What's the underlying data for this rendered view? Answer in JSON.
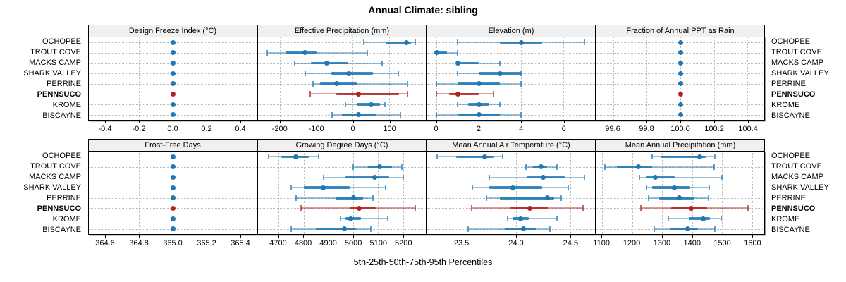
{
  "title": "Annual Climate: sibling",
  "caption": "5th-25th-50th-75th-95th Percentiles",
  "stations": [
    "OCHOPEE",
    "TROUT COVE",
    "MACKS CAMP",
    "SHARK VALLEY",
    "PERRINE",
    "PENNSUCO",
    "KROME",
    "BISCAYNE"
  ],
  "highlight_station": "PENNSUCO",
  "colors": {
    "series_normal": "#1f77b4",
    "series_highlight": "#b22222",
    "strip_background": "#f0f0f0",
    "grid": "#bdbdbd",
    "panel_border": "#000000"
  },
  "chart_data": {
    "type": "dotplot-percentiles",
    "layout": "2 rows x 4 columns trellis",
    "percentile_labels": [
      "5th",
      "25th",
      "50th",
      "75th",
      "95th"
    ],
    "legend_position": "none",
    "grid": true,
    "panels": [
      {
        "title": "Design Freeze Index (°C)",
        "xlim": [
          -0.5,
          0.5
        ],
        "ticks": [
          -0.4,
          -0.2,
          0,
          0.2,
          0.4
        ],
        "tick_labels": [
          "-0.4",
          "-0.2",
          "0.0",
          "0.2",
          "0.4"
        ],
        "values": [
          [
            0,
            0,
            0,
            0,
            0
          ],
          [
            0,
            0,
            0,
            0,
            0
          ],
          [
            0,
            0,
            0,
            0,
            0
          ],
          [
            0,
            0,
            0,
            0,
            0
          ],
          [
            0,
            0,
            0,
            0,
            0
          ],
          [
            0,
            0,
            0,
            0,
            0
          ],
          [
            0,
            0,
            0,
            0,
            0
          ],
          [
            0,
            0,
            0,
            0,
            0
          ]
        ]
      },
      {
        "title": "Effective Precipitation (mm)",
        "xlim": [
          -261,
          201
        ],
        "ticks": [
          -200,
          -100,
          0,
          100
        ],
        "tick_labels": [
          "-200",
          "-100",
          "0",
          "100"
        ],
        "values": [
          [
            30,
            90,
            148,
            160,
            172
          ],
          [
            -235,
            -185,
            -132,
            -100,
            40
          ],
          [
            -160,
            -115,
            -71,
            -13,
            80
          ],
          [
            -130,
            -60,
            -11,
            55,
            125
          ],
          [
            -110,
            -90,
            -45,
            10,
            150
          ],
          [
            -118,
            -45,
            15,
            127,
            150
          ],
          [
            -20,
            10,
            50,
            75,
            88
          ],
          [
            -58,
            -30,
            15,
            65,
            132
          ]
        ]
      },
      {
        "title": "Elevation (m)",
        "xlim": [
          -0.45,
          7.5
        ],
        "ticks": [
          0,
          2,
          4,
          6
        ],
        "tick_labels": [
          "0",
          "2",
          "4",
          "6"
        ],
        "values": [
          [
            1,
            3,
            4,
            5,
            7
          ],
          [
            0,
            0,
            0,
            0.5,
            1
          ],
          [
            1,
            1,
            1,
            2,
            3
          ],
          [
            1,
            2,
            3,
            4,
            4
          ],
          [
            0,
            1,
            2,
            3,
            4
          ],
          [
            0,
            0.6,
            1,
            2,
            2.7
          ],
          [
            1,
            1.5,
            2,
            2.5,
            3
          ],
          [
            0,
            1,
            2,
            3,
            4
          ]
        ]
      },
      {
        "title": "Fraction of Annual PPT as Rain",
        "xlim": [
          99.5,
          100.5
        ],
        "ticks": [
          99.6,
          99.8,
          100,
          100.2,
          100.4
        ],
        "tick_labels": [
          "99.6",
          "99.8",
          "100.0",
          "100.2",
          "100.4"
        ],
        "values": [
          [
            100,
            100,
            100,
            100,
            100
          ],
          [
            100,
            100,
            100,
            100,
            100
          ],
          [
            100,
            100,
            100,
            100,
            100
          ],
          [
            100,
            100,
            100,
            100,
            100
          ],
          [
            100,
            100,
            100,
            100,
            100
          ],
          [
            100,
            100,
            100,
            100,
            100
          ],
          [
            100,
            100,
            100,
            100,
            100
          ],
          [
            100,
            100,
            100,
            100,
            100
          ]
        ]
      },
      {
        "title": "Frost-Free Days",
        "xlim": [
          364.5,
          365.5
        ],
        "ticks": [
          364.6,
          364.8,
          365,
          365.2,
          365.4
        ],
        "tick_labels": [
          "364.6",
          "364.8",
          "365.0",
          "365.2",
          "365.4"
        ],
        "values": [
          [
            365,
            365,
            365,
            365,
            365
          ],
          [
            365,
            365,
            365,
            365,
            365
          ],
          [
            365,
            365,
            365,
            365,
            365
          ],
          [
            365,
            365,
            365,
            365,
            365
          ],
          [
            365,
            365,
            365,
            365,
            365
          ],
          [
            365,
            365,
            365,
            365,
            365
          ],
          [
            365,
            365,
            365,
            365,
            365
          ],
          [
            365,
            365,
            365,
            365,
            365
          ]
        ]
      },
      {
        "title": "Growing Degree Days (°C)",
        "xlim": [
          4617,
          5292
        ],
        "ticks": [
          4700,
          4800,
          4900,
          5000,
          5100,
          5200
        ],
        "tick_labels": [
          "4700",
          "4800",
          "4900",
          "5000",
          "5100",
          "5200"
        ],
        "values": [
          [
            4660,
            4710,
            4770,
            4820,
            4860
          ],
          [
            5000,
            5060,
            5105,
            5155,
            5195
          ],
          [
            4880,
            4970,
            5085,
            5145,
            5200
          ],
          [
            4750,
            4800,
            4880,
            4985,
            5130
          ],
          [
            4770,
            4930,
            5000,
            5040,
            5080
          ],
          [
            4790,
            4985,
            5025,
            5090,
            5250
          ],
          [
            4950,
            4970,
            4990,
            5030,
            5140
          ],
          [
            4750,
            4850,
            4965,
            5010,
            5070
          ]
        ]
      },
      {
        "title": "Mean Annual Air Temperature (°C)",
        "xlim": [
          23.18,
          24.73
        ],
        "ticks": [
          23.5,
          24,
          24.5
        ],
        "tick_labels": [
          "23.5",
          "24.0",
          "24.5"
        ],
        "values": [
          [
            23.27,
            23.45,
            23.71,
            23.8,
            23.88
          ],
          [
            24.09,
            24.16,
            24.23,
            24.29,
            24.38
          ],
          [
            23.75,
            24.1,
            24.25,
            24.45,
            24.63
          ],
          [
            23.6,
            23.75,
            23.97,
            24.24,
            24.48
          ],
          [
            23.73,
            23.85,
            24.29,
            24.35,
            24.42
          ],
          [
            23.59,
            23.95,
            24.13,
            24.3,
            24.62
          ],
          [
            23.92,
            23.97,
            24.04,
            24.12,
            24.38
          ],
          [
            23.56,
            23.9,
            24.07,
            24.18,
            24.31
          ]
        ]
      },
      {
        "title": "Mean Annual Precipitation (mm)",
        "xlim": [
          1081,
          1641
        ],
        "ticks": [
          1100,
          1200,
          1300,
          1400,
          1500,
          1600
        ],
        "tick_labels": [
          "1100",
          "1200",
          "1300",
          "1400",
          "1500",
          "1600"
        ],
        "values": [
          [
            1268,
            1295,
            1425,
            1445,
            1477
          ],
          [
            1110,
            1150,
            1222,
            1268,
            1475
          ],
          [
            1225,
            1245,
            1278,
            1342,
            1500
          ],
          [
            1248,
            1268,
            1340,
            1395,
            1458
          ],
          [
            1255,
            1290,
            1358,
            1405,
            1455
          ],
          [
            1230,
            1330,
            1398,
            1450,
            1588
          ],
          [
            1320,
            1390,
            1438,
            1460,
            1498
          ],
          [
            1273,
            1327,
            1385,
            1420,
            1477
          ]
        ]
      }
    ]
  }
}
